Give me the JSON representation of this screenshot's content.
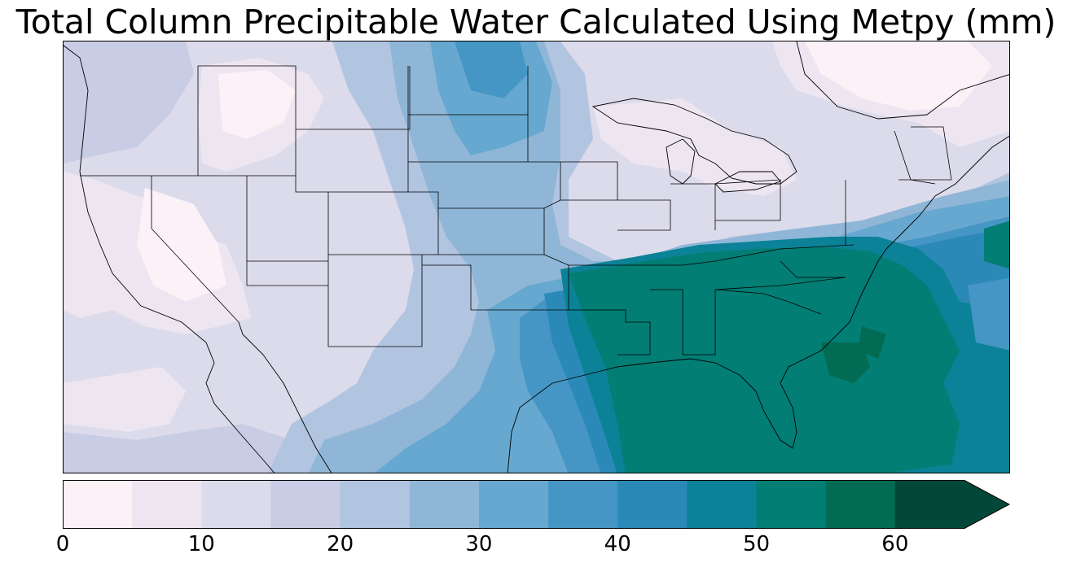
{
  "title": "Total Column Precipitable Water Calculated Using Metpy (mm)",
  "colorbar": {
    "levels": [
      0,
      5,
      10,
      15,
      20,
      25,
      30,
      35,
      40,
      45,
      50,
      55,
      60,
      65
    ],
    "colors": [
      "#fbf1f7",
      "#ede6f1",
      "#dcdbeb",
      "#c8cce4",
      "#b1c4e0",
      "#8fb6d7",
      "#66a8cf",
      "#4596c5",
      "#2b89b8",
      "#0b8297",
      "#027e74",
      "#036b53",
      "#024838"
    ],
    "extend": "max",
    "tick_labels": [
      "0",
      "10",
      "20",
      "30",
      "40",
      "50",
      "60"
    ],
    "tick_values": [
      0,
      10,
      20,
      30,
      40,
      50,
      60
    ]
  },
  "map": {
    "projection": "PlateCarree",
    "extent_lon_lat": [
      -125,
      -66,
      22,
      50
    ],
    "region": "Contiguous United States",
    "features": [
      "coastlines",
      "country borders",
      "state borders",
      "lakes"
    ],
    "field": "precipitable water (mm)"
  }
}
